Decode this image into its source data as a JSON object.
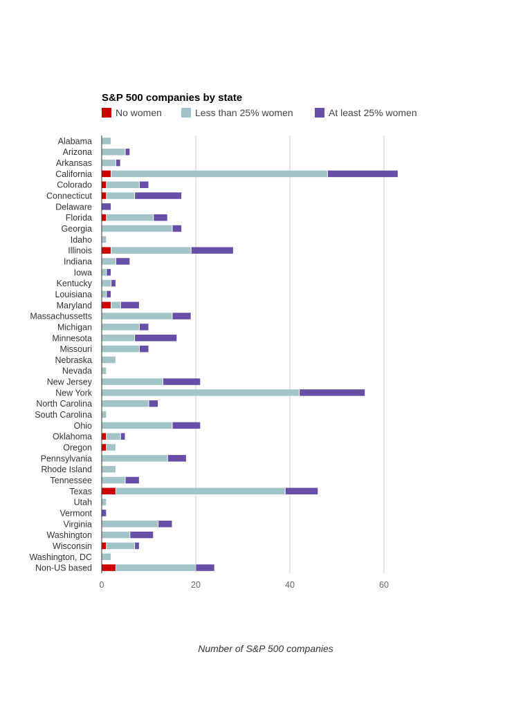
{
  "chart_data": {
    "type": "bar",
    "orientation": "horizontal",
    "stacked": true,
    "title": "S&P 500 companies by state",
    "xlabel": "Number of S&P 500 companies",
    "ylabel": "",
    "xlim": [
      0,
      70
    ],
    "xticks": [
      0,
      20,
      40,
      60
    ],
    "grid": true,
    "legend_position": "top-left",
    "categories": [
      "Alabama",
      "Arizona",
      "Arkansas",
      "California",
      "Colorado",
      "Connecticut",
      "Delaware",
      "Florida",
      "Georgia",
      "Idaho",
      "Illinois",
      "Indiana",
      "Iowa",
      "Kentucky",
      "Louisiana",
      "Maryland",
      "Massachussetts",
      "Michigan",
      "Minnesota",
      "Missouri",
      "Nebraska",
      "Nevada",
      "New Jersey",
      "New York",
      "North Carolina",
      "South Carolina",
      "Ohio",
      "Oklahoma",
      "Oregon",
      "Pennsylvania",
      "Rhode Island",
      "Tennessee",
      "Texas",
      "Utah",
      "Vermont",
      "Virginia",
      "Washington",
      "Wisconsin",
      "Washington, DC",
      "Non-US based"
    ],
    "series": [
      {
        "name": "No women",
        "color": "#cc0000",
        "values": [
          0,
          0,
          0,
          2,
          1,
          1,
          0,
          1,
          0,
          0,
          2,
          0,
          0,
          0,
          0,
          2,
          0,
          0,
          0,
          0,
          0,
          0,
          0,
          0,
          0,
          0,
          0,
          1,
          1,
          0,
          0,
          0,
          3,
          0,
          0,
          0,
          0,
          1,
          0,
          3
        ]
      },
      {
        "name": "Less than 25% women",
        "color": "#a2c4c9",
        "values": [
          2,
          5,
          3,
          46,
          7,
          6,
          0,
          10,
          15,
          1,
          17,
          3,
          1,
          2,
          1,
          2,
          15,
          8,
          7,
          8,
          3,
          1,
          13,
          42,
          10,
          1,
          15,
          3,
          2,
          14,
          3,
          5,
          36,
          1,
          0,
          12,
          6,
          6,
          2,
          17
        ]
      },
      {
        "name": "At least 25% women",
        "color": "#674ea7",
        "values": [
          0,
          1,
          1,
          15,
          2,
          10,
          2,
          3,
          2,
          0,
          9,
          3,
          1,
          1,
          1,
          4,
          4,
          2,
          9,
          2,
          0,
          0,
          8,
          14,
          2,
          0,
          6,
          1,
          0,
          4,
          0,
          3,
          7,
          0,
          1,
          3,
          5,
          1,
          0,
          4
        ]
      }
    ]
  }
}
